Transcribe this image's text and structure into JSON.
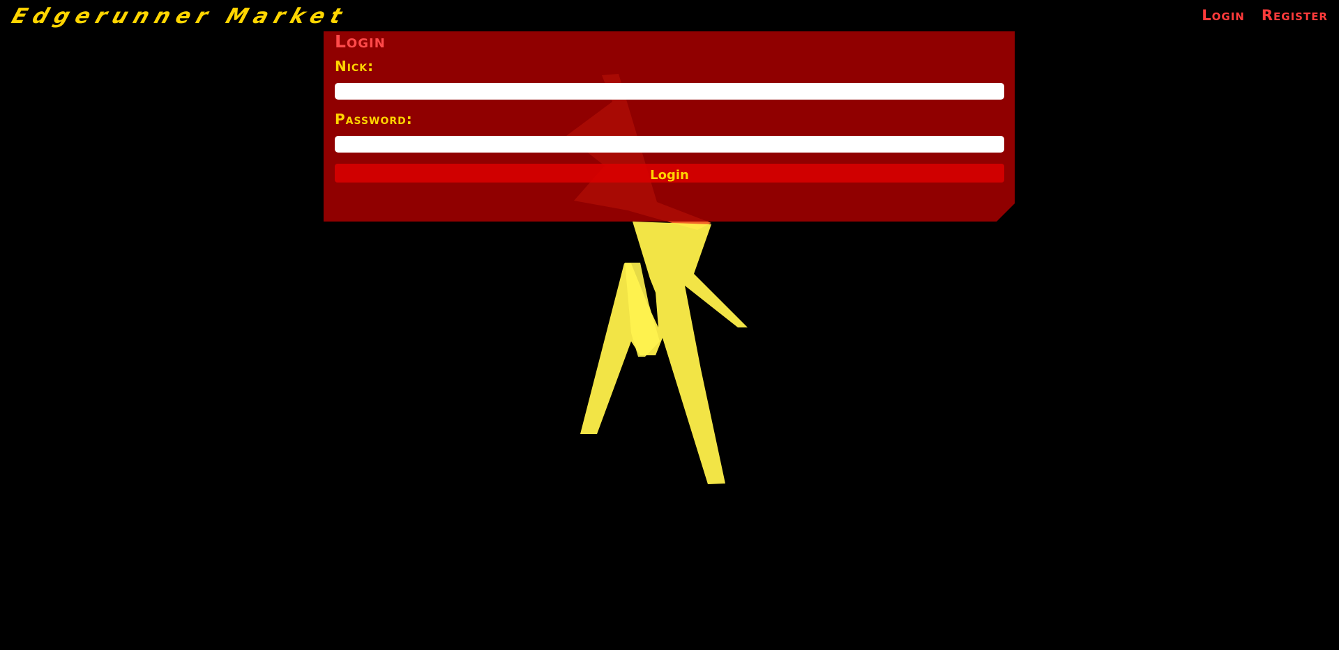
{
  "header": {
    "brand": "Edgerunner Market",
    "nav": {
      "login": "Login",
      "register": "Register"
    }
  },
  "login_form": {
    "title": "Login",
    "nick_label": "Nick:",
    "nick_value": "",
    "password_label": "Password:",
    "password_value": "",
    "submit_label": "Login"
  },
  "colors": {
    "background": "#000000",
    "brand": "#ffd500",
    "nav_link": "#ff3b3b",
    "panel": "#a00000",
    "label": "#ffd400",
    "button": "#dc0000"
  }
}
